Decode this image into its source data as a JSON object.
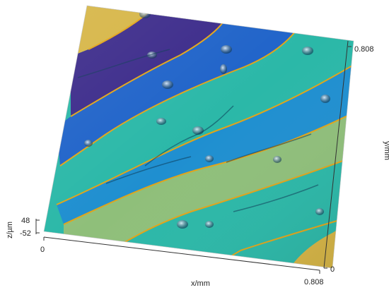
{
  "chart_data": {
    "type": "surface-3d",
    "xlabel": "x/mm",
    "ylabel": "y/mm",
    "zlabel": "z/µm",
    "xticks": [
      "0",
      "0.808"
    ],
    "yticks": [
      "0",
      "0.808"
    ],
    "zticks": [
      "48",
      "-52"
    ],
    "xlim": [
      0,
      0.808
    ],
    "ylim": [
      0,
      0.808
    ],
    "zlim": [
      -52,
      48
    ],
    "colormap": [
      "#3b2a8a",
      "#1f63c9",
      "#19a4c9",
      "#2bb8a8",
      "#8fbf7a",
      "#d6b545"
    ],
    "contour_color": "#e2a418",
    "grid": false
  }
}
